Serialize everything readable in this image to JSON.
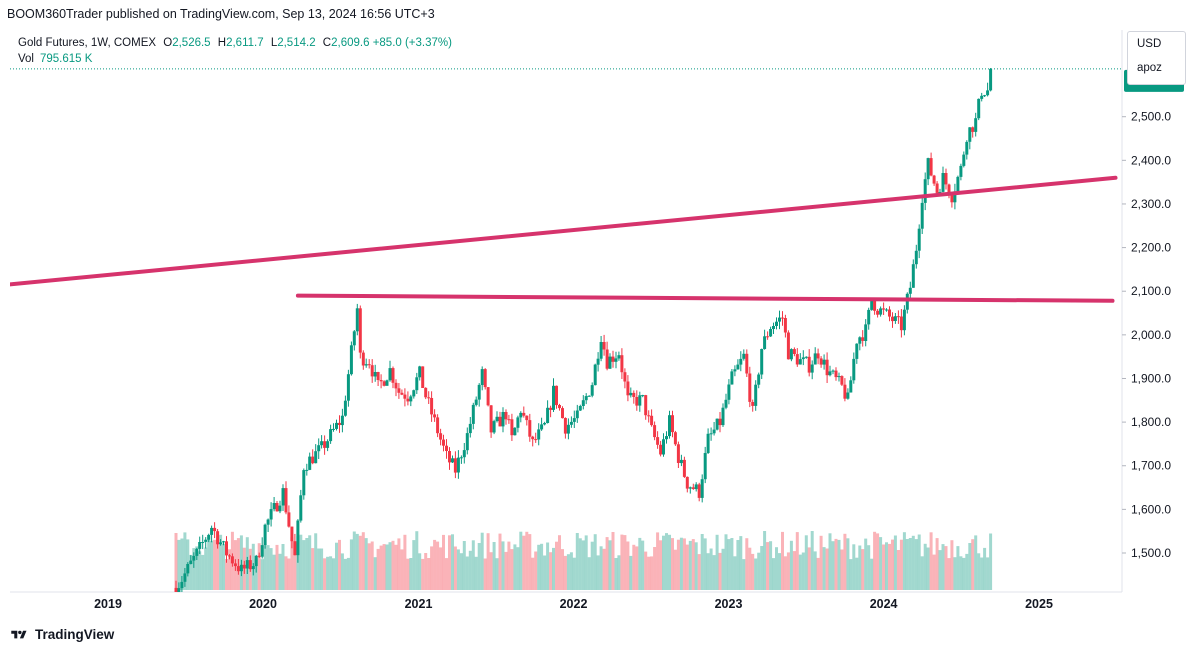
{
  "header": {
    "published": "BOOM360Trader published on TradingView.com, Sep 13, 2024 16:56 UTC+3"
  },
  "legend": {
    "symbol": "Gold Futures, 1W, COMEX",
    "open_label": "O",
    "open": "2,526.5",
    "high_label": "H",
    "high": "2,611.7",
    "low_label": "L",
    "low": "2,514.2",
    "close_label": "C",
    "close": "2,609.6",
    "change": "+85.0 (+3.37%)",
    "vol_label": "Vol",
    "vol": "795.615 K"
  },
  "currency": {
    "unit": "USD",
    "user": "apoz"
  },
  "footer": {
    "brand": "TradingView"
  },
  "colors": {
    "up": "#089981",
    "down": "#f23645",
    "trendline": "#d6336c",
    "text": "#131722"
  },
  "chart_data": {
    "type": "candlestick",
    "title": "Gold Futures, 1W, COMEX",
    "ylim": [
      1420,
      2640
    ],
    "y_ticks": [
      "2,500.0",
      "2,400.0",
      "2,300.0",
      "2,200.0",
      "2,100.0",
      "2,000.0",
      "1,900.0",
      "1,800.0",
      "1,700.0",
      "1,600.0",
      "1,500.0"
    ],
    "x_ticks": [
      "2019",
      "2020",
      "2021",
      "2022",
      "2023",
      "2024",
      "2025"
    ],
    "last_price": 2609.6,
    "price_path": [
      [
        "2019-06-10",
        1420
      ],
      [
        "2019-06-24",
        1440
      ],
      [
        "2019-08-05",
        1510
      ],
      [
        "2019-09-02",
        1560
      ],
      [
        "2019-10-07",
        1500
      ],
      [
        "2019-11-11",
        1460
      ],
      [
        "2019-12-16",
        1480
      ],
      [
        "2020-01-06",
        1560
      ],
      [
        "2020-02-17",
        1640
      ],
      [
        "2020-03-16",
        1490
      ],
      [
        "2020-04-06",
        1700
      ],
      [
        "2020-05-18",
        1740
      ],
      [
        "2020-06-15",
        1780
      ],
      [
        "2020-07-06",
        1810
      ],
      [
        "2020-07-27",
        1960
      ],
      [
        "2020-08-10",
        2060
      ],
      [
        "2020-08-17",
        1950
      ],
      [
        "2020-09-07",
        1940
      ],
      [
        "2020-09-28",
        1880
      ],
      [
        "2020-10-26",
        1920
      ],
      [
        "2020-11-16",
        1870
      ],
      [
        "2020-12-07",
        1860
      ],
      [
        "2021-01-04",
        1910
      ],
      [
        "2021-01-18",
        1860
      ],
      [
        "2021-02-15",
        1780
      ],
      [
        "2021-03-08",
        1720
      ],
      [
        "2021-03-29",
        1690
      ],
      [
        "2021-04-26",
        1770
      ],
      [
        "2021-05-31",
        1910
      ],
      [
        "2021-06-21",
        1780
      ],
      [
        "2021-07-26",
        1820
      ],
      [
        "2021-08-09",
        1760
      ],
      [
        "2021-08-30",
        1830
      ],
      [
        "2021-09-27",
        1750
      ],
      [
        "2021-10-25",
        1790
      ],
      [
        "2021-11-15",
        1870
      ],
      [
        "2021-12-13",
        1790
      ],
      [
        "2022-01-10",
        1810
      ],
      [
        "2022-02-14",
        1890
      ],
      [
        "2022-03-07",
        2000
      ],
      [
        "2022-03-21",
        1940
      ],
      [
        "2022-04-18",
        1960
      ],
      [
        "2022-05-09",
        1850
      ],
      [
        "2022-06-13",
        1850
      ],
      [
        "2022-07-04",
        1780
      ],
      [
        "2022-07-25",
        1730
      ],
      [
        "2022-08-15",
        1800
      ],
      [
        "2022-09-05",
        1720
      ],
      [
        "2022-09-26",
        1660
      ],
      [
        "2022-10-24",
        1640
      ],
      [
        "2022-11-14",
        1760
      ],
      [
        "2022-12-12",
        1800
      ],
      [
        "2023-01-09",
        1900
      ],
      [
        "2023-02-06",
        1950
      ],
      [
        "2023-02-27",
        1820
      ],
      [
        "2023-03-20",
        1970
      ],
      [
        "2023-04-10",
        2020
      ],
      [
        "2023-05-08",
        2040
      ],
      [
        "2023-05-22",
        1960
      ],
      [
        "2023-06-19",
        1940
      ],
      [
        "2023-07-10",
        1930
      ],
      [
        "2023-07-31",
        1960
      ],
      [
        "2023-08-21",
        1920
      ],
      [
        "2023-09-25",
        1880
      ],
      [
        "2023-10-09",
        1850
      ],
      [
        "2023-10-30",
        1990
      ],
      [
        "2023-11-20",
        2010
      ],
      [
        "2023-12-04",
        2080
      ],
      [
        "2023-12-18",
        2060
      ],
      [
        "2024-01-15",
        2040
      ],
      [
        "2024-02-12",
        2020
      ],
      [
        "2024-03-04",
        2110
      ],
      [
        "2024-03-18",
        2200
      ],
      [
        "2024-04-01",
        2320
      ],
      [
        "2024-04-15",
        2390
      ],
      [
        "2024-05-06",
        2330
      ],
      [
        "2024-05-20",
        2360
      ],
      [
        "2024-06-10",
        2320
      ],
      [
        "2024-07-01",
        2380
      ],
      [
        "2024-07-15",
        2460
      ],
      [
        "2024-08-05",
        2490
      ],
      [
        "2024-08-19",
        2560
      ],
      [
        "2024-09-02",
        2560
      ],
      [
        "2024-09-09",
        2609
      ]
    ],
    "trendlines": [
      {
        "name": "rising-resistance",
        "points": [
          [
            "2018-05-07",
            2115
          ],
          [
            "2025-06-30",
            2360
          ]
        ]
      },
      {
        "name": "horizontal-resistance",
        "points": [
          [
            "2020-03-23",
            2090
          ],
          [
            "2025-06-23",
            2078
          ]
        ]
      }
    ],
    "volume_mean_k": 250,
    "grid": false,
    "legend_position": "top-left"
  }
}
